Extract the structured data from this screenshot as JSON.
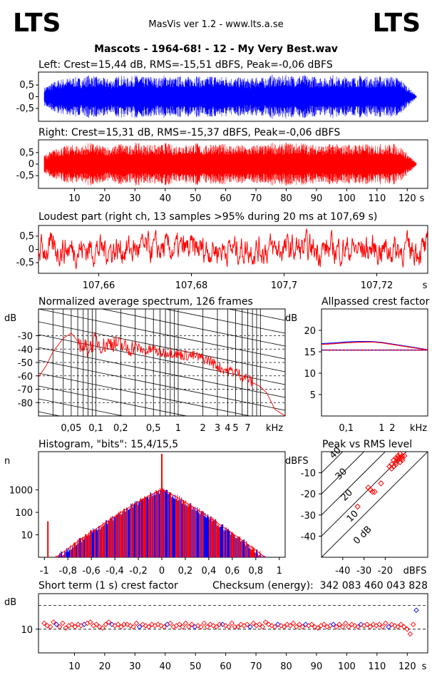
{
  "header": {
    "logo_left": "LTS",
    "logo_right": "LTS",
    "app": "MasVis ver 1.2 - www.lts.a.se",
    "file": "Mascots - 1964-68! - 12 - My Very Best.wav"
  },
  "colors": {
    "left": "#0000ff",
    "right": "#ff0000",
    "grid": "#000000"
  },
  "chart_data": [
    {
      "id": "left",
      "type": "area",
      "title": "Left: Crest=15,44 dB, RMS=-15,51 dBFS, Peak=-0,06 dBFS",
      "crest_db": 15.44,
      "rms_dbfs": -15.51,
      "peak_dbfs": -0.06,
      "ylim": [
        -1,
        1
      ],
      "yticks": [
        "0,5",
        "0",
        "-0,5"
      ],
      "duration_s": 123,
      "envelope": [
        0.4,
        0.6,
        0.75,
        0.8,
        0.85,
        0.8,
        0.95,
        0.85,
        0.8,
        0.75,
        0.95,
        0.8,
        0.95,
        0.85,
        0.9,
        0.8,
        0.95,
        0.8,
        0.9,
        0.85,
        0.95,
        0.75,
        0.95,
        0.85,
        0.9,
        0.8,
        0.85,
        0.75,
        0.9,
        0.8,
        0.95,
        0.85,
        0.95,
        0.9,
        0.95,
        0.85,
        0.9,
        0.8,
        0.95,
        0.8,
        0.9,
        0.85,
        0.95,
        0.8,
        0.9,
        0.85,
        0.9,
        0.75,
        0.4,
        0.05
      ]
    },
    {
      "id": "right",
      "type": "area",
      "title": "Right: Crest=15,31 dB, RMS=-15,37 dBFS, Peak=-0,06 dBFS",
      "crest_db": 15.31,
      "rms_dbfs": -15.37,
      "peak_dbfs": -0.06,
      "ylim": [
        -1,
        1
      ],
      "yticks": [
        "0,5",
        "0",
        "-0,5"
      ],
      "xticks": [
        "10",
        "20",
        "30",
        "40",
        "50",
        "60",
        "70",
        "80",
        "90",
        "100",
        "110",
        "120"
      ],
      "xunit": "s",
      "loud_marker_s": 107.69,
      "envelope": [
        0.4,
        0.6,
        0.75,
        0.8,
        0.85,
        0.8,
        0.95,
        0.85,
        0.8,
        0.75,
        0.95,
        0.8,
        0.95,
        0.85,
        0.9,
        0.8,
        0.95,
        0.8,
        0.9,
        0.85,
        0.95,
        0.75,
        0.95,
        0.85,
        0.9,
        0.8,
        0.85,
        0.75,
        0.9,
        0.8,
        0.95,
        0.85,
        0.95,
        0.9,
        0.95,
        0.85,
        0.9,
        0.8,
        0.95,
        0.8,
        0.9,
        0.85,
        0.95,
        0.8,
        0.9,
        0.85,
        0.9,
        0.75,
        0.4,
        0.05
      ]
    },
    {
      "id": "loudest",
      "type": "line",
      "title": "Loudest part (right ch, 13 samples >95% during 20 ms at 107,69 s)",
      "xlim": [
        107.647,
        107.731
      ],
      "ylim": [
        -0.9,
        0.9
      ],
      "yticks": [
        "0,5",
        "0",
        "-0,5"
      ],
      "xticks": [
        {
          "v": 107.66,
          "label": "107,66"
        },
        {
          "v": 107.68,
          "label": "107,68"
        },
        {
          "v": 107.7,
          "label": "107,7"
        },
        {
          "v": 107.72,
          "label": "107,72"
        }
      ],
      "xunit": "s"
    },
    {
      "id": "spectrum",
      "type": "line",
      "title": "Normalized average spectrum, 126 frames",
      "yunit": "dB",
      "ylim": [
        -90,
        -10
      ],
      "yticks": [
        -30,
        -40,
        -50,
        -60,
        -70,
        -80
      ],
      "xlim_khz": [
        0.02,
        20
      ],
      "xticks": [
        {
          "v": 0.05,
          "label": "0,05"
        },
        {
          "v": 0.1,
          "label": "0,1"
        },
        {
          "v": 0.2,
          "label": "0,2"
        },
        {
          "v": 0.5,
          "label": "0,5"
        },
        {
          "v": 1,
          "label": "1"
        },
        {
          "v": 2,
          "label": "2"
        },
        {
          "v": 3,
          "label": "3"
        },
        {
          "v": 4,
          "label": "4"
        },
        {
          "v": 5,
          "label": "5"
        },
        {
          "v": 7,
          "label": "7"
        }
      ],
      "xunit": "kHz",
      "x_khz": [
        0.02,
        0.025,
        0.03,
        0.04,
        0.05,
        0.06,
        0.07,
        0.08,
        0.1,
        0.12,
        0.15,
        0.2,
        0.25,
        0.3,
        0.4,
        0.5,
        0.6,
        0.8,
        1.0,
        1.5,
        2.0,
        2.5,
        3.0,
        4.0,
        5.0,
        6.0,
        7.0,
        8.0,
        10.0,
        12.0,
        15.0,
        20.0
      ],
      "y_db": [
        -61,
        -52,
        -42,
        -32,
        -28,
        -34,
        -38,
        -40,
        -33,
        -38,
        -35,
        -37,
        -40,
        -38,
        -42,
        -40,
        -43,
        -42,
        -44,
        -45,
        -47,
        -49,
        -53,
        -56,
        -57,
        -60,
        -62,
        -65,
        -68,
        -73,
        -85,
        -90
      ]
    },
    {
      "id": "allpassed",
      "type": "line",
      "title": "Allpassed crest factor",
      "yunit": "dB",
      "ylim": [
        0,
        25
      ],
      "yticks": [
        20,
        15,
        10,
        5
      ],
      "xlim_khz": [
        0.02,
        20
      ],
      "xticks": [
        {
          "v": 0.1,
          "label": "0,1"
        },
        {
          "v": 1,
          "label": "1"
        },
        {
          "v": 2,
          "label": "2"
        }
      ],
      "xunit": "kHz",
      "baseline_db": 15.4,
      "x_khz": [
        0.02,
        0.05,
        0.1,
        0.2,
        0.5,
        1,
        2,
        5,
        10,
        20
      ],
      "left_db": [
        16.9,
        17.1,
        17.3,
        17.4,
        17.4,
        17.2,
        16.8,
        16.3,
        15.9,
        15.5
      ],
      "right_db": [
        16.7,
        16.9,
        17.1,
        17.2,
        17.3,
        17.1,
        16.7,
        16.2,
        15.8,
        15.4
      ]
    },
    {
      "id": "histogram",
      "type": "bar",
      "title": "Histogram, \"bits\": 15,4/15,5",
      "ylabel": "n",
      "scale": "log",
      "yticks": [
        {
          "v": 1000,
          "label": "1000"
        },
        {
          "v": 100,
          "label": "100"
        },
        {
          "v": 10,
          "label": "10"
        }
      ],
      "xlim": [
        -1.05,
        1.05
      ],
      "xticks": [
        {
          "v": -1,
          "label": "-1"
        },
        {
          "v": -0.8,
          "label": "-0,8"
        },
        {
          "v": -0.6,
          "label": "-0,6"
        },
        {
          "v": -0.4,
          "label": "-0,4"
        },
        {
          "v": -0.2,
          "label": "-0,2"
        },
        {
          "v": 0,
          "label": "0"
        },
        {
          "v": 0.2,
          "label": "0,2"
        },
        {
          "v": 0.4,
          "label": "0,4"
        },
        {
          "v": 0.6,
          "label": "0,6"
        },
        {
          "v": 0.8,
          "label": "0,8"
        },
        {
          "v": 1,
          "label": "1"
        }
      ],
      "peak_count": 1000,
      "zero_spike": 40000,
      "outlier_x": -0.97
    },
    {
      "id": "peakrms",
      "type": "scatter",
      "title": "Peak vs RMS level",
      "ylabel": "dBFS",
      "xlabel": "dBFS",
      "xlim": [
        -50,
        0
      ],
      "ylim": [
        -50,
        0
      ],
      "yticks": [
        -10,
        -20,
        -30,
        -40
      ],
      "xticks": [
        -40,
        -30,
        -20
      ],
      "diagonal_labels": [
        "40",
        "30",
        "20",
        "10",
        "0 dB"
      ],
      "points": [
        [
          -33,
          -26
        ],
        [
          -28,
          -17
        ],
        [
          -27,
          -18
        ],
        [
          -26,
          -19
        ],
        [
          -25,
          -19
        ],
        [
          -22,
          -15
        ],
        [
          -18,
          -7
        ],
        [
          -17,
          -6
        ],
        [
          -16,
          -7
        ],
        [
          -15,
          -5
        ],
        [
          -14,
          -4
        ],
        [
          -15,
          -6
        ],
        [
          -13,
          -3
        ],
        [
          -12,
          -2
        ],
        [
          -14,
          -3
        ],
        [
          -13,
          -5
        ],
        [
          -16,
          -4
        ],
        [
          -12,
          -4
        ],
        [
          -11,
          -2
        ],
        [
          -17,
          -8
        ],
        [
          -13,
          -1
        ],
        [
          -14,
          -2
        ],
        [
          -15,
          -3
        ],
        [
          -12,
          -3
        ]
      ]
    },
    {
      "id": "shortcrest",
      "type": "scatter",
      "title": "Short term (1 s) crest factor",
      "checksum_label": "Checksum (energy):",
      "checksum_value": "342 083 460 043 828",
      "yunit": "dB",
      "ylim": [
        0,
        25
      ],
      "yticks": [
        {
          "v": 10,
          "label": "10"
        }
      ],
      "dashed_db": [
        10,
        20
      ],
      "xticks": [
        "10",
        "20",
        "30",
        "40",
        "50",
        "60",
        "70",
        "80",
        "90",
        "100",
        "110",
        "120"
      ],
      "xunit": "s",
      "values": [
        12.5,
        11.5,
        11,
        13,
        12,
        11,
        12.5,
        10.5,
        11.5,
        12,
        11,
        12,
        11.5,
        12,
        12.5,
        13,
        11.5,
        12,
        11,
        10.5,
        12,
        13,
        12,
        11.5,
        12,
        11,
        12,
        12,
        11.5,
        11,
        12.5,
        11,
        12,
        11.5,
        11,
        12,
        11.5,
        12,
        11.5,
        11,
        12,
        12.5,
        11,
        11.5,
        12,
        11,
        12.5,
        11,
        12,
        11,
        11.5,
        11,
        12.5,
        11,
        12,
        11.5,
        11,
        12,
        12,
        11.5,
        11,
        12.5,
        11,
        11,
        12,
        11.5,
        12,
        11,
        12.5,
        11.5,
        12,
        11,
        13,
        12,
        11.5,
        11,
        12,
        11.5,
        11,
        12,
        11.5,
        12.5,
        11,
        12,
        11,
        12,
        11.5,
        12,
        11,
        10.5,
        11.5,
        12,
        11,
        11.5,
        12,
        11,
        12,
        11,
        12.5,
        11,
        12,
        11.5,
        11,
        12,
        11.5,
        12,
        11,
        12,
        11.5,
        12,
        11,
        12.5,
        11,
        12,
        11.5,
        11,
        12,
        11,
        10,
        8,
        12,
        18
      ]
    }
  ]
}
